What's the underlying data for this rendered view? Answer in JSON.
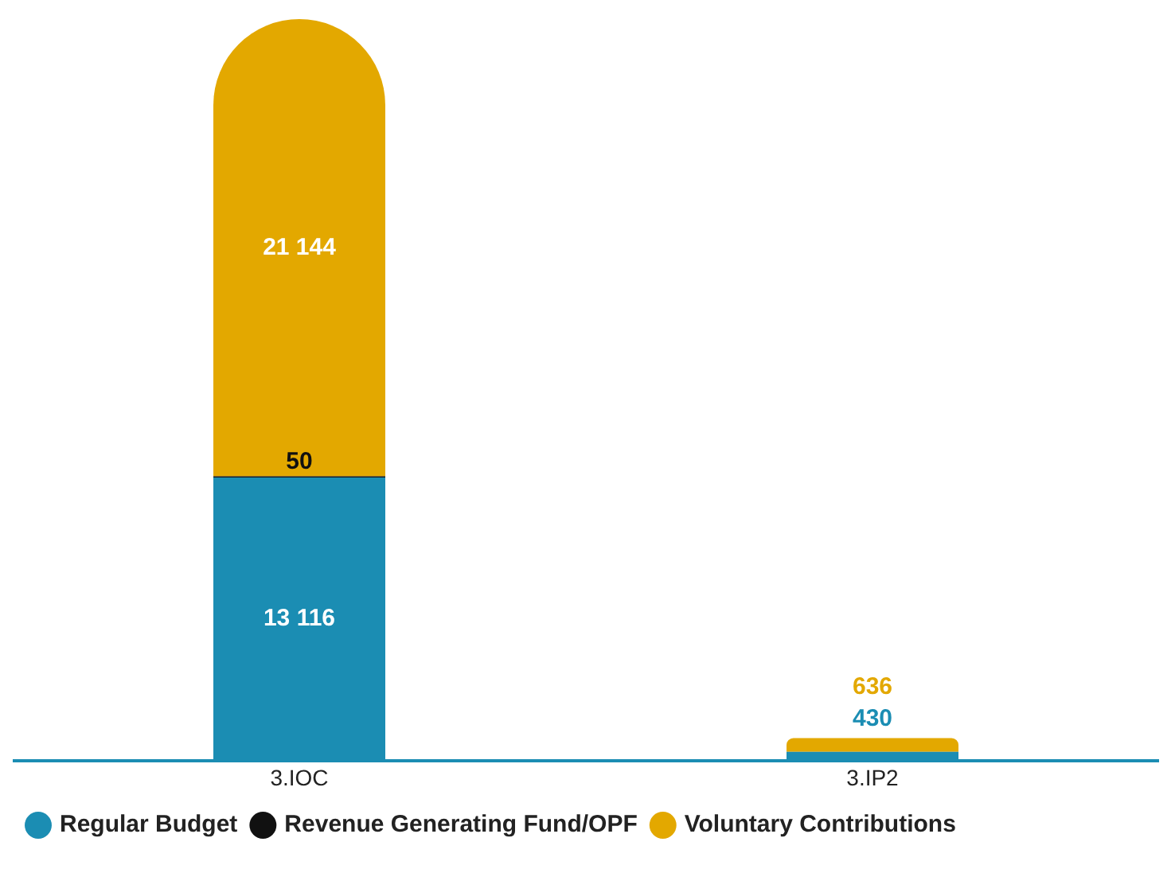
{
  "chart_data": {
    "type": "bar",
    "stacked": true,
    "categories": [
      "3.IOC",
      "3.IP2"
    ],
    "tick_labels": "x",
    "grid": false,
    "legend": "bottom left",
    "series": [
      {
        "name": "Regular Budget",
        "color": "#1b8db3",
        "values": [
          13116,
          430
        ],
        "value_labels": [
          "13 116",
          "430"
        ]
      },
      {
        "name": "Revenue Generating Fund/OPF",
        "color": "#111111",
        "values": [
          50,
          null
        ],
        "value_labels": [
          "50",
          null
        ]
      },
      {
        "name": "Voluntary Contributions",
        "color": "#e3a800",
        "values": [
          21144,
          636
        ],
        "value_labels": [
          "21 144",
          "636"
        ]
      }
    ]
  }
}
